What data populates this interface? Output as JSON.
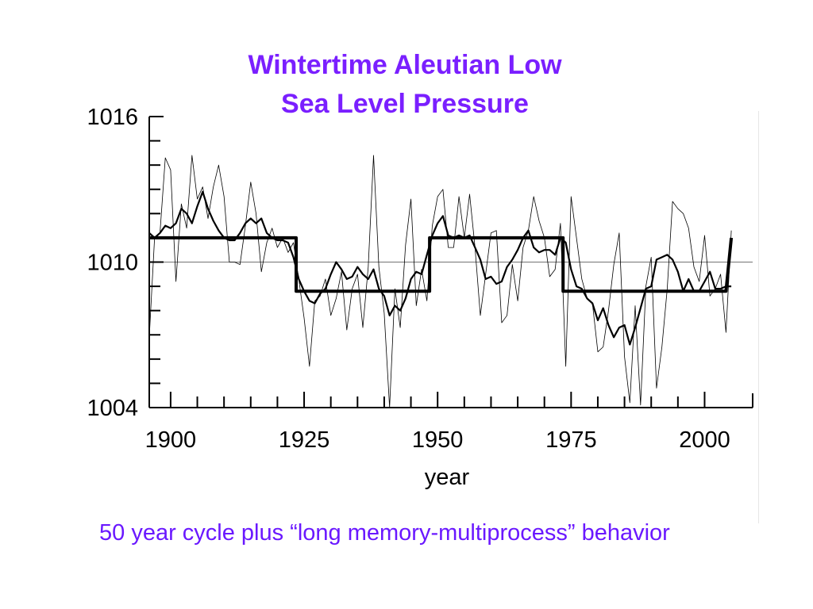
{
  "chart_data": {
    "type": "line",
    "title": "Wintertime Aleutian Low",
    "subtitle": "Sea Level Pressure",
    "xlabel": "year",
    "ylabel": "",
    "xlim": [
      1896,
      2009
    ],
    "ylim": [
      1004,
      1016
    ],
    "xticks": [
      1900,
      1925,
      1950,
      1975,
      2000
    ],
    "yticks": [
      1004,
      1010,
      1016
    ],
    "reference_line": 1010,
    "grid": false,
    "series": [
      {
        "style": "thin",
        "x": [
          1896,
          1897,
          1898,
          1899,
          1900,
          1901,
          1902,
          1903,
          1904,
          1905,
          1906,
          1907,
          1908,
          1909,
          1910,
          1911,
          1912,
          1913,
          1914,
          1915,
          1916,
          1917,
          1918,
          1919,
          1920,
          1921,
          1922,
          1923,
          1924,
          1925,
          1926,
          1927,
          1928,
          1929,
          1930,
          1931,
          1932,
          1933,
          1934,
          1935,
          1936,
          1937,
          1938,
          1939,
          1940,
          1941,
          1942,
          1943,
          1944,
          1945,
          1946,
          1947,
          1948,
          1949,
          1950,
          1951,
          1952,
          1953,
          1954,
          1955,
          1956,
          1957,
          1958,
          1959,
          1960,
          1961,
          1962,
          1963,
          1964,
          1965,
          1966,
          1967,
          1968,
          1969,
          1970,
          1971,
          1972,
          1973,
          1974,
          1975,
          1976,
          1977,
          1978,
          1979,
          1980,
          1981,
          1982,
          1983,
          1984,
          1985,
          1986,
          1987,
          1988,
          1989,
          1990,
          1991,
          1992,
          1993,
          1994,
          1995,
          1996,
          1997,
          1998,
          1999,
          2000,
          2001,
          2002,
          2003,
          2004,
          2005
        ],
        "values": [
          1006.9,
          1011,
          1011.2,
          1014.3,
          1013.8,
          1009.2,
          1012.4,
          1011.4,
          1014.4,
          1012.6,
          1013.1,
          1011.8,
          1013.1,
          1014,
          1012.7,
          1010,
          1010,
          1009.9,
          1011.5,
          1013.3,
          1012,
          1009.6,
          1010.8,
          1011.4,
          1010.6,
          1011,
          1010.4,
          1010.8,
          1009.3,
          1007.7,
          1005.7,
          1008.4,
          1008.6,
          1009.3,
          1007.8,
          1008.5,
          1009.6,
          1007.2,
          1008.9,
          1009.5,
          1007.3,
          1009.8,
          1014.4,
          1009.8,
          1007.9,
          1004,
          1008.9,
          1007.3,
          1010.7,
          1012.6,
          1008.2,
          1009.7,
          1008.4,
          1011.5,
          1012.7,
          1013,
          1010.6,
          1010.6,
          1012.7,
          1011,
          1012.8,
          1010.6,
          1007.8,
          1009.5,
          1011.2,
          1011.3,
          1007.5,
          1007.8,
          1009.9,
          1008.4,
          1010.6,
          1011.3,
          1012.7,
          1011.7,
          1011,
          1009.4,
          1009.7,
          1011.6,
          1005.7,
          1012.7,
          1011,
          1009.3,
          1008.5,
          1008.3,
          1006.3,
          1006.5,
          1008,
          1009.9,
          1011.2,
          1006.1,
          1004.2,
          1008.2,
          1004.1,
          1009,
          1010.2,
          1004.8,
          1006.5,
          1008.9,
          1012.5,
          1012.2,
          1012,
          1011.4,
          1009.8,
          1009.2,
          1011.1,
          1008.6,
          1008.9,
          1009.5,
          1007.1,
          1011.3
        ]
      },
      {
        "style": "smoothed",
        "x": [
          1896,
          1897,
          1898,
          1899,
          1900,
          1901,
          1902,
          1903,
          1904,
          1905,
          1906,
          1907,
          1908,
          1909,
          1910,
          1911,
          1912,
          1913,
          1914,
          1915,
          1916,
          1917,
          1918,
          1919,
          1920,
          1921,
          1922,
          1923,
          1924,
          1925,
          1926,
          1927,
          1928,
          1929,
          1930,
          1931,
          1932,
          1933,
          1934,
          1935,
          1936,
          1937,
          1938,
          1939,
          1940,
          1941,
          1942,
          1943,
          1944,
          1945,
          1946,
          1947,
          1948,
          1949,
          1950,
          1951,
          1952,
          1953,
          1954,
          1955,
          1956,
          1957,
          1958,
          1959,
          1960,
          1961,
          1962,
          1963,
          1964,
          1965,
          1966,
          1967,
          1968,
          1969,
          1970,
          1971,
          1972,
          1973,
          1974,
          1975,
          1976,
          1977,
          1978,
          1979,
          1980,
          1981,
          1982,
          1983,
          1984,
          1985,
          1986,
          1987,
          1988,
          1989,
          1990,
          1991,
          1992,
          1993,
          1994,
          1995,
          1996,
          1997,
          1998,
          1999,
          2000,
          2001,
          2002,
          2003,
          2004,
          2005
        ],
        "values": [
          1011.2,
          1011,
          1011.2,
          1011.5,
          1011.4,
          1011.6,
          1012.2,
          1012,
          1011.6,
          1012.3,
          1012.9,
          1012.2,
          1011.7,
          1011.3,
          1011,
          1010.9,
          1010.9,
          1011.2,
          1011.6,
          1011.8,
          1011.6,
          1011.8,
          1011.2,
          1011,
          1010.9,
          1010.9,
          1010.8,
          1010.2,
          1009.3,
          1008.8,
          1008.4,
          1008.3,
          1008.7,
          1008.9,
          1009.5,
          1010,
          1009.7,
          1009.3,
          1009.4,
          1009.8,
          1009.5,
          1009.3,
          1009.7,
          1008.9,
          1008.6,
          1007.8,
          1008.2,
          1008,
          1008.5,
          1009.3,
          1009.6,
          1009.5,
          1010.3,
          1011.1,
          1011.6,
          1011.9,
          1011.1,
          1011,
          1011.1,
          1011,
          1011.1,
          1010.6,
          1010.1,
          1009.3,
          1009.4,
          1009.1,
          1009.2,
          1009.8,
          1010.1,
          1010.5,
          1011,
          1011.3,
          1010.6,
          1010.4,
          1010.5,
          1010.5,
          1010.3,
          1011,
          1010.8,
          1009.7,
          1009,
          1008.9,
          1008.5,
          1008.3,
          1007.6,
          1008.1,
          1007.4,
          1006.9,
          1007.3,
          1007.4,
          1006.6,
          1007.3,
          1008.1,
          1008.9,
          1009,
          1010.1,
          1010.2,
          1010.3,
          1010.1,
          1009.6,
          1008.8,
          1009.3,
          1008.8,
          1008.8,
          1009.2,
          1009.6,
          1008.9,
          1008.9,
          1009,
          1009
        ]
      },
      {
        "style": "regime-mean",
        "x": [
          1896,
          1923.5,
          1923.5,
          1948.5,
          1948.5,
          1973.5,
          1973.5,
          2004,
          2004,
          2005
        ],
        "values": [
          1011,
          1011,
          1008.8,
          1008.8,
          1011,
          1011,
          1008.8,
          1008.8,
          1008.8,
          1011
        ]
      }
    ]
  },
  "caption": "50 year cycle plus “long memory-multiprocess” behavior"
}
